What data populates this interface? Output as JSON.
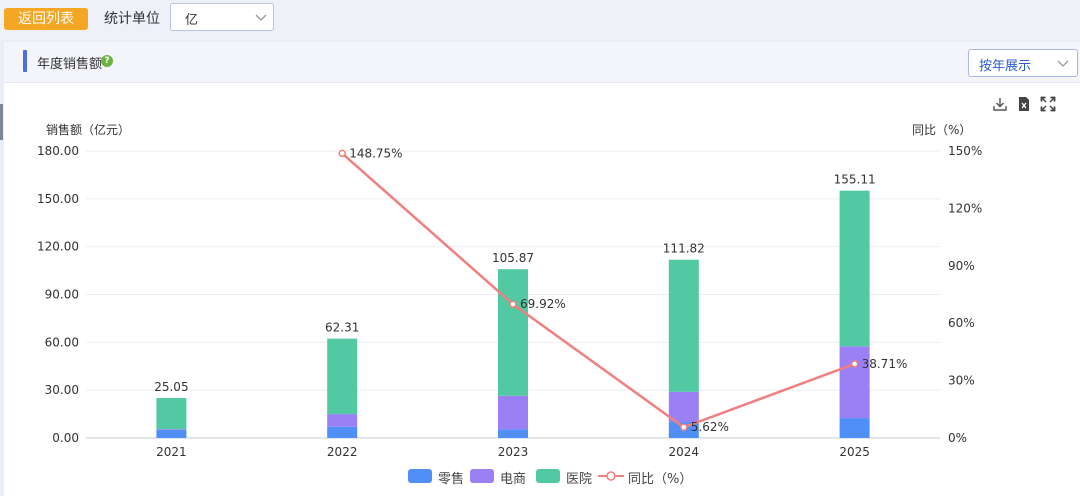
{
  "toolbar": {
    "back_label": "返回列表",
    "unit_label": "统计单位",
    "unit_value": "亿"
  },
  "panel": {
    "title": "年度销售额",
    "help_icon": "question-circle-icon",
    "view_select": "按年展示",
    "tools": [
      "download-icon",
      "export-excel-icon",
      "fullscreen-icon"
    ]
  },
  "chart_data": {
    "type": "bar",
    "stacked": true,
    "categories": [
      "2021",
      "2022",
      "2023",
      "2024",
      "2025"
    ],
    "y_left": {
      "label": "销售额（亿元）",
      "min": 0,
      "max": 180,
      "step": 30,
      "ticks": [
        "0.00",
        "30.00",
        "60.00",
        "90.00",
        "120.00",
        "150.00",
        "180.00"
      ]
    },
    "y_right": {
      "label": "同比（%）",
      "min": 0,
      "max": 150,
      "step": 30,
      "ticks": [
        "0%",
        "30%",
        "60%",
        "90%",
        "120%",
        "150%"
      ]
    },
    "series": [
      {
        "name": "零售",
        "color": "#4f8ff7",
        "values": [
          5.0,
          7.0,
          5.5,
          10.0,
          12.5
        ]
      },
      {
        "name": "电商",
        "color": "#9a7ff5",
        "values": [
          0.5,
          8.0,
          21.0,
          19.0,
          45.0
        ]
      },
      {
        "name": "医院",
        "color": "#52c9a2",
        "values": [
          19.55,
          47.31,
          79.37,
          82.82,
          97.61
        ]
      }
    ],
    "totals": [
      "25.05",
      "62.31",
      "105.87",
      "111.82",
      "155.11"
    ],
    "line": {
      "name": "同比（%）",
      "color": "#f08080",
      "categories": [
        "2022",
        "2023",
        "2024",
        "2025"
      ],
      "values": [
        148.75,
        69.92,
        5.62,
        38.71
      ],
      "labels": [
        "148.75%",
        "69.92%",
        "5.62%",
        "38.71%"
      ]
    },
    "grid": true,
    "legend_position": "bottom"
  }
}
